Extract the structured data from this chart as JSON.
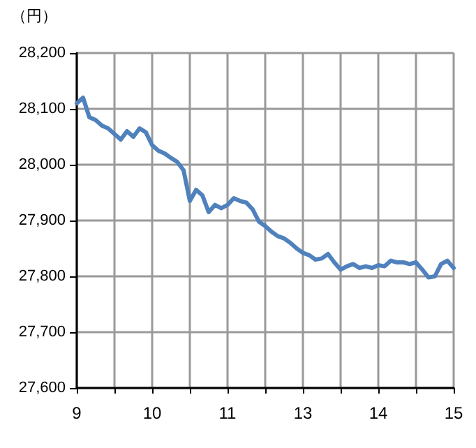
{
  "chart_data": {
    "type": "line",
    "ylabel": "（円）",
    "categories": [
      "9",
      null,
      null,
      null,
      null,
      null,
      null,
      null,
      null,
      null,
      null,
      null,
      "10",
      null,
      null,
      null,
      null,
      null,
      null,
      null,
      null,
      null,
      null,
      null,
      "11",
      null,
      null,
      null,
      null,
      null,
      null,
      null,
      null,
      null,
      null,
      null,
      "13",
      null,
      null,
      null,
      null,
      null,
      null,
      null,
      null,
      null,
      null,
      null,
      "14",
      null,
      null,
      null,
      null,
      null,
      null,
      null,
      null,
      null,
      null,
      null,
      "15"
    ],
    "series": [
      {
        "color": "#4f81bd",
        "values": [
          28110,
          28120,
          28085,
          28080,
          28070,
          28065,
          28055,
          28045,
          28060,
          28050,
          28065,
          28058,
          28035,
          28025,
          28020,
          28012,
          28005,
          27990,
          27935,
          27955,
          27945,
          27915,
          27928,
          27922,
          27928,
          27940,
          27935,
          27932,
          27920,
          27898,
          27890,
          27880,
          27872,
          27868,
          27860,
          27850,
          27842,
          27838,
          27830,
          27832,
          27840,
          27825,
          27812,
          27818,
          27822,
          27815,
          27818,
          27815,
          27820,
          27818,
          27828,
          27825,
          27825,
          27822,
          27825,
          27812,
          27798,
          27800,
          27822,
          27828,
          27815
        ]
      }
    ],
    "ylim": [
      27600,
      28200
    ],
    "yticks": [
      {
        "value": 27600,
        "label": "27,600"
      },
      {
        "value": 27700,
        "label": "27,700"
      },
      {
        "value": 27800,
        "label": "27,800"
      },
      {
        "value": 27900,
        "label": "27,900"
      },
      {
        "value": 28000,
        "label": "28,000"
      },
      {
        "value": 28100,
        "label": "28,100"
      },
      {
        "value": 28200,
        "label": "28,200"
      }
    ],
    "grid": true,
    "marker": "none",
    "line_style": "solid"
  }
}
